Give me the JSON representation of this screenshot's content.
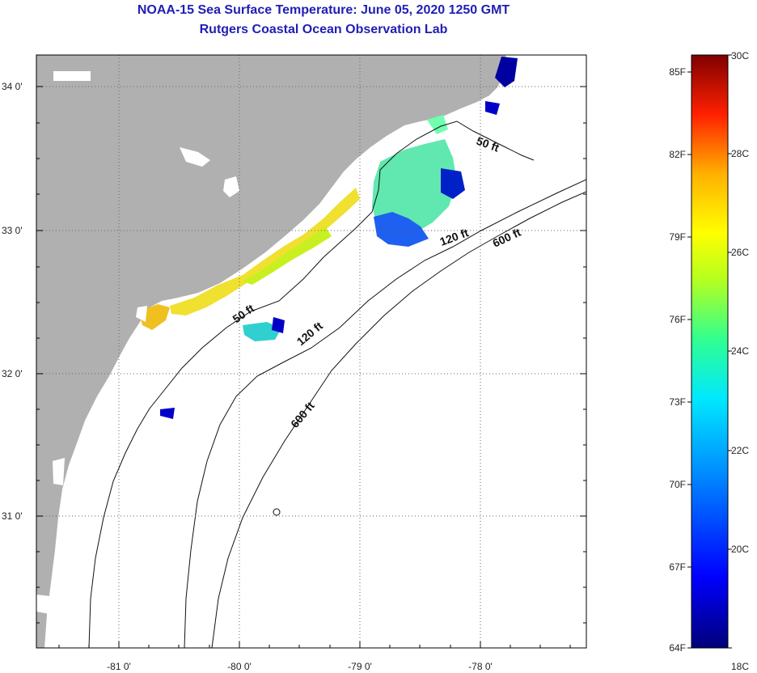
{
  "title": "NOAA-15 Sea Surface Temperature:  June 05, 2020 1250 GMT",
  "subtitle": "Rutgers Coastal Ocean Observation Lab",
  "lat_labels": [
    "34 0'",
    "33 0'",
    "32 0'",
    "31 0'"
  ],
  "lon_labels": [
    "-81 0'",
    "-80 0'",
    "-79 0'",
    "-78 0'"
  ],
  "contour_labels": [
    "50 ft",
    "120 ft",
    "600 ft",
    "50 ft",
    "120 ft",
    "600 ft"
  ],
  "colorbar": {
    "fahrenheit": [
      "85F",
      "82F",
      "79F",
      "76F",
      "73F",
      "70F",
      "67F",
      "64F"
    ],
    "celsius": [
      "30C",
      "28C",
      "26C",
      "24C",
      "22C",
      "20C",
      "18C"
    ],
    "range_c": [
      18,
      30
    ]
  },
  "colors": {
    "land": "#b0b0b0",
    "ocean": "#ffffff",
    "title": "#1f1fb4"
  }
}
